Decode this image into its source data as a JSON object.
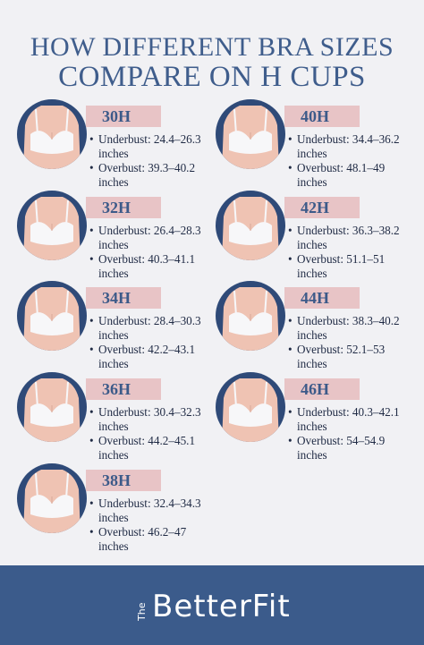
{
  "header": {
    "title_line1": "HOW DIFFERENT BRA SIZES",
    "title_line2": "COMPARE ON H CUPS"
  },
  "items": [
    {
      "size": "30H",
      "underbust": "Underbust: 24.4–26.3 inches",
      "overbust": "Overbust: 39.3–40.2 inches"
    },
    {
      "size": "32H",
      "underbust": "Underbust: 26.4–28.3 inches",
      "overbust": "Overbust: 40.3–41.1 inches"
    },
    {
      "size": "34H",
      "underbust": "Underbust: 28.4–30.3 inches",
      "overbust": "Overbust: 42.2–43.1 inches"
    },
    {
      "size": "36H",
      "underbust": "Underbust: 30.4–32.3 inches",
      "overbust": "Overbust: 44.2–45.1 inches"
    },
    {
      "size": "38H",
      "underbust": "Underbust: 32.4–34.3 inches",
      "overbust": "Overbust: 46.2–47 inches"
    },
    {
      "size": "40H",
      "underbust": "Underbust: 34.4–36.2 inches",
      "overbust": "Overbust: 48.1–49 inches"
    },
    {
      "size": "42H",
      "underbust": "Underbust: 36.3–38.2 inches",
      "overbust": "Overbust: 51.1–51 inches"
    },
    {
      "size": "44H",
      "underbust": "Underbust: 38.3–40.2 inches",
      "overbust": "Overbust: 52.1–53 inches"
    },
    {
      "size": "46H",
      "underbust": "Underbust: 40.3–42.1 inches",
      "overbust": "Overbust: 54–54.9 inches"
    }
  ],
  "footer": {
    "prefix": "The",
    "brand": "BetterFit"
  }
}
